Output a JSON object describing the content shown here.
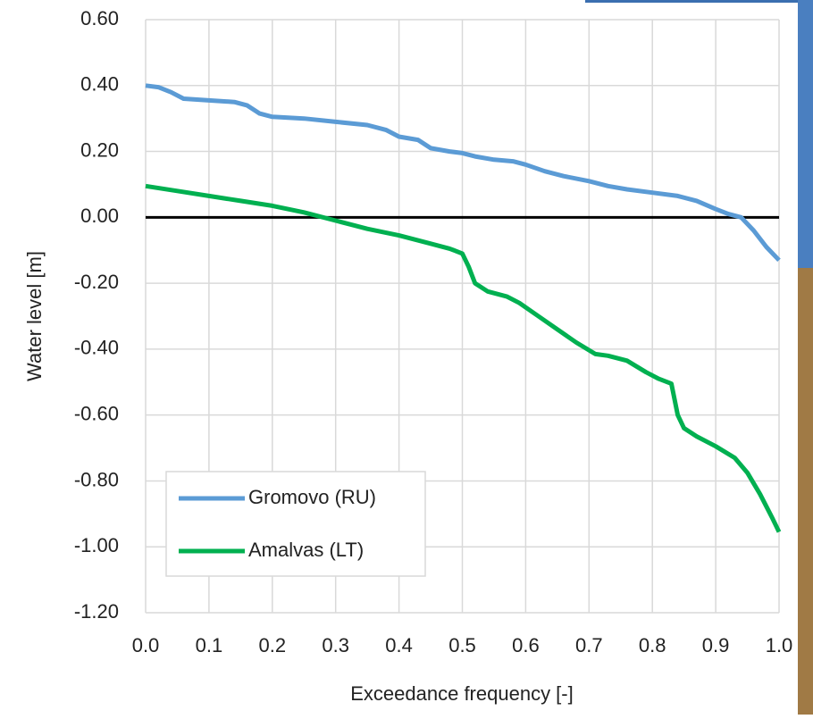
{
  "chart_data": {
    "type": "line",
    "x_label": "Exceedance frequency [-]",
    "y_label": "Water level [m]",
    "xlim": [
      0,
      1
    ],
    "ylim": [
      -1.2,
      0.6
    ],
    "xticks": [
      {
        "value": 0,
        "label": "0.0"
      },
      0.1,
      0.2,
      0.3,
      0.4,
      0.5,
      0.6,
      0.7,
      0.8,
      0.9,
      {
        "value": 1,
        "label": "1.0"
      }
    ],
    "yticks": [
      {
        "value": 0.6,
        "label": "0.60"
      },
      {
        "value": 0.4,
        "label": "0.40"
      },
      {
        "value": 0.2,
        "label": "0.20"
      },
      {
        "value": 0,
        "label": "0.00"
      },
      {
        "value": -0.2,
        "label": "-0.20"
      },
      {
        "value": -0.4,
        "label": "-0.40"
      },
      {
        "value": -0.6,
        "label": "-0.60"
      },
      {
        "value": -0.8,
        "label": "-0.80"
      },
      {
        "value": -1,
        "label": "-1.00"
      },
      {
        "value": -1.2,
        "label": "-1.20"
      }
    ],
    "grid": true,
    "legend": "lower left",
    "series": [
      {
        "name": "Gromovo (RU)",
        "color": "#5b9bd5",
        "x": [
          0,
          0.02,
          0.04,
          0.06,
          0.1,
          0.14,
          0.16,
          0.18,
          0.2,
          0.25,
          0.3,
          0.35,
          0.38,
          0.4,
          0.43,
          0.45,
          0.48,
          0.5,
          0.52,
          0.55,
          0.58,
          0.6,
          0.63,
          0.66,
          0.7,
          0.73,
          0.76,
          0.8,
          0.84,
          0.87,
          0.9,
          0.92,
          0.94,
          0.96,
          0.98,
          1.0
        ],
        "values": [
          0.4,
          0.395,
          0.38,
          0.36,
          0.355,
          0.35,
          0.34,
          0.315,
          0.305,
          0.3,
          0.29,
          0.28,
          0.265,
          0.245,
          0.235,
          0.21,
          0.2,
          0.195,
          0.185,
          0.175,
          0.17,
          0.16,
          0.14,
          0.125,
          0.11,
          0.095,
          0.085,
          0.075,
          0.065,
          0.05,
          0.025,
          0.01,
          0.0,
          -0.04,
          -0.09,
          -0.13
        ]
      },
      {
        "name": "Amalvas (LT)",
        "color": "#00b050",
        "x": [
          0,
          0.05,
          0.1,
          0.15,
          0.2,
          0.25,
          0.3,
          0.35,
          0.4,
          0.45,
          0.48,
          0.5,
          0.51,
          0.52,
          0.54,
          0.57,
          0.59,
          0.62,
          0.65,
          0.68,
          0.71,
          0.73,
          0.76,
          0.79,
          0.81,
          0.83,
          0.84,
          0.85,
          0.87,
          0.9,
          0.93,
          0.95,
          0.97,
          0.99,
          1.0
        ],
        "values": [
          0.095,
          0.08,
          0.065,
          0.05,
          0.035,
          0.015,
          -0.01,
          -0.035,
          -0.055,
          -0.08,
          -0.095,
          -0.11,
          -0.15,
          -0.2,
          -0.225,
          -0.24,
          -0.26,
          -0.3,
          -0.34,
          -0.38,
          -0.415,
          -0.42,
          -0.435,
          -0.47,
          -0.49,
          -0.505,
          -0.6,
          -0.64,
          -0.665,
          -0.695,
          -0.73,
          -0.775,
          -0.84,
          -0.915,
          -0.955
        ]
      }
    ]
  }
}
